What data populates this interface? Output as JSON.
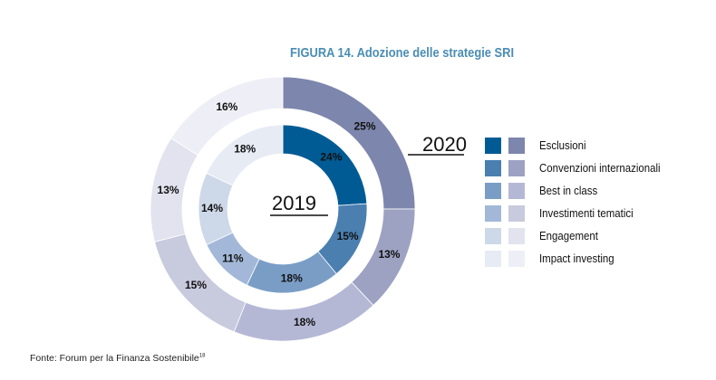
{
  "title": "FIGURA 14. Adozione delle strategie SRI",
  "source": {
    "text": "Fonte: Forum per la Finanza Sostenibile",
    "footnote": "18"
  },
  "chart_data": {
    "type": "donut",
    "title": "FIGURA 14. Adozione delle strategie SRI",
    "categories": [
      "Esclusioni",
      "Convenzioni internazionali",
      "Best in class",
      "Investimenti tematici",
      "Engagement",
      "Impact investing"
    ],
    "series": [
      {
        "name": "2019",
        "ring": "inner",
        "values": [
          24,
          15,
          18,
          11,
          14,
          18
        ],
        "labels": [
          "24%",
          "15%",
          "18%",
          "11%",
          "14%",
          "18%"
        ],
        "colors": [
          "#005b94",
          "#4a7fb0",
          "#7a9dc6",
          "#a3b8d8",
          "#cdd8e8",
          "#e6ebf4"
        ]
      },
      {
        "name": "2020",
        "ring": "outer",
        "values": [
          25,
          13,
          18,
          15,
          13,
          16
        ],
        "labels": [
          "25%",
          "13%",
          "18%",
          "15%",
          "13%",
          "16%"
        ],
        "colors": [
          "#7d86ac",
          "#9da2c2",
          "#b5b8d5",
          "#c8cade",
          "#e2e3ee",
          "#eeeff6"
        ]
      }
    ],
    "legend_position": "right",
    "unit": "%"
  }
}
